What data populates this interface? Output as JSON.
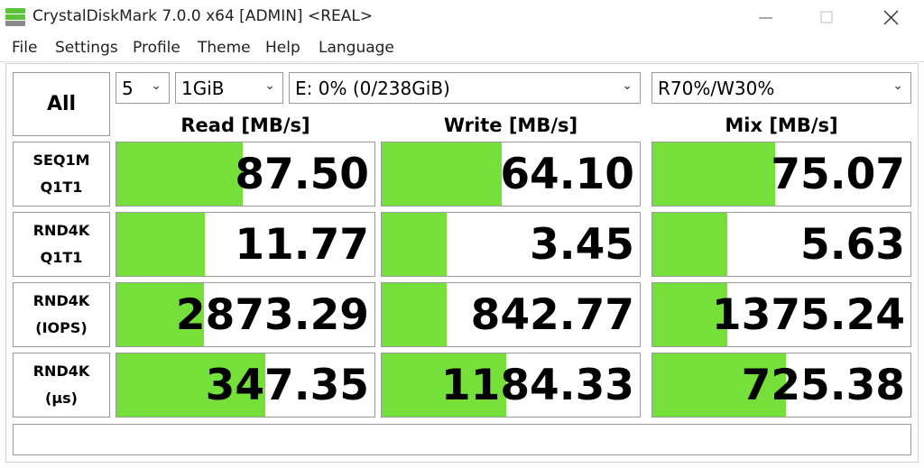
{
  "title_bar": {
    "title": "CrystalDiskMark 7.0.0 x64 [ADMIN] <REAL>"
  },
  "menu": [
    "File",
    "Settings",
    "Profile",
    "Theme",
    "Help",
    "Language"
  ],
  "controls": {
    "all_button": "All",
    "count": "5",
    "size": "1GiB",
    "drive": "E: 0% (0/238GiB)",
    "mix": "R70%/W30%"
  },
  "headers": [
    "Read [MB/s]",
    "Write [MB/s]",
    "Mix [MB/s]"
  ],
  "rows": [
    {
      "label": [
        "SEQ1M",
        "Q1T1"
      ],
      "results": [
        "87.50",
        "64.10",
        "75.07"
      ]
    },
    {
      "label": [
        "RND4K",
        "Q1T1"
      ],
      "results": [
        "11.77",
        "3.45",
        "5.63"
      ]
    },
    {
      "label": [
        "RND4K",
        "(IOPS)"
      ],
      "results": [
        "2873.29",
        "842.77",
        "1375.24"
      ]
    },
    {
      "label": [
        "RND4K",
        "(μs)"
      ],
      "results": [
        "347.35",
        "1184.33",
        "725.38"
      ]
    }
  ]
}
